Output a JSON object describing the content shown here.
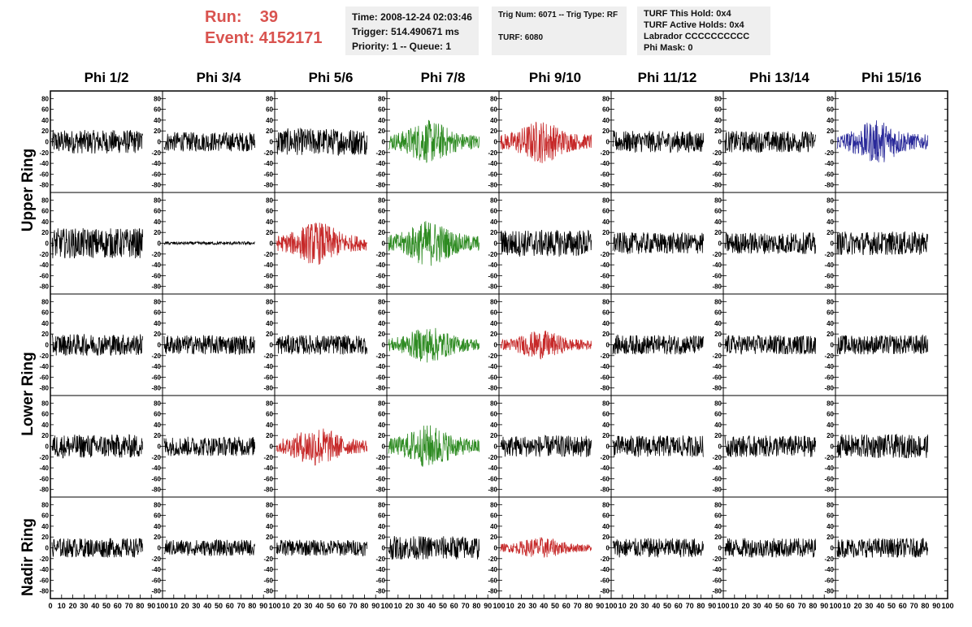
{
  "run_label": "Run:",
  "run_value": "39",
  "event_label": "Event:",
  "event_value": "4152171",
  "info1": {
    "time": "Time: 2008-12-24 02:03:46",
    "trigger": "Trigger: 514.490671 ms",
    "priority": "Priority: 1 -- Queue: 1"
  },
  "info2": {
    "trig": "Trig Num: 6071 -- Trig Type: RF",
    "turf": "TURF: 6080"
  },
  "info3": {
    "this_hold": "TURF This Hold: 0x4",
    "active_holds": "TURF Active Holds: 0x4",
    "labrador": "Labrador CCCCCCCCCC",
    "phi_mask": "Phi Mask: 0"
  },
  "columns": [
    "Phi 1/2",
    "Phi 3/4",
    "Phi 5/6",
    "Phi 7/8",
    "Phi 9/10",
    "Phi 11/12",
    "Phi 13/14",
    "Phi 15/16"
  ],
  "rings": [
    "Upper Ring",
    "Lower Ring",
    "Nadir Ring"
  ],
  "colors": {
    "black": "#000000",
    "green": "#2e8b22",
    "red": "#c62828",
    "blue": "#2a2a9a",
    "run_text": "#d9534f",
    "info_bg": "#efefef"
  },
  "chart_data": {
    "type": "line",
    "xlim": [
      0,
      100
    ],
    "ylim": [
      -85,
      85
    ],
    "x_ticks": [
      0,
      10,
      20,
      30,
      40,
      50,
      60,
      70,
      80,
      90,
      100
    ],
    "y_ticks": [
      -80,
      -60,
      -40,
      -20,
      0,
      20,
      40,
      60,
      80
    ],
    "panel_rows": 5,
    "panel_cols": 8,
    "trace_colors": [
      [
        "black",
        "black",
        "black",
        "green",
        "red",
        "black",
        "black",
        "blue"
      ],
      [
        "black",
        "black",
        "red",
        "green",
        "black",
        "black",
        "black",
        "black"
      ],
      [
        "black",
        "black",
        "black",
        "green",
        "red",
        "black",
        "black",
        "black"
      ],
      [
        "black",
        "black",
        "red",
        "green",
        "black",
        "black",
        "black",
        "black"
      ],
      [
        "black",
        "black",
        "black",
        "black",
        "red",
        "black",
        "black",
        "black"
      ]
    ],
    "trace_amplitudes": [
      [
        22,
        18,
        25,
        30,
        30,
        20,
        20,
        30
      ],
      [
        28,
        3,
        30,
        32,
        25,
        20,
        20,
        22
      ],
      [
        20,
        18,
        18,
        25,
        20,
        18,
        18,
        18
      ],
      [
        22,
        18,
        28,
        30,
        20,
        20,
        20,
        22
      ],
      [
        18,
        15,
        15,
        22,
        15,
        18,
        18,
        18
      ]
    ]
  }
}
